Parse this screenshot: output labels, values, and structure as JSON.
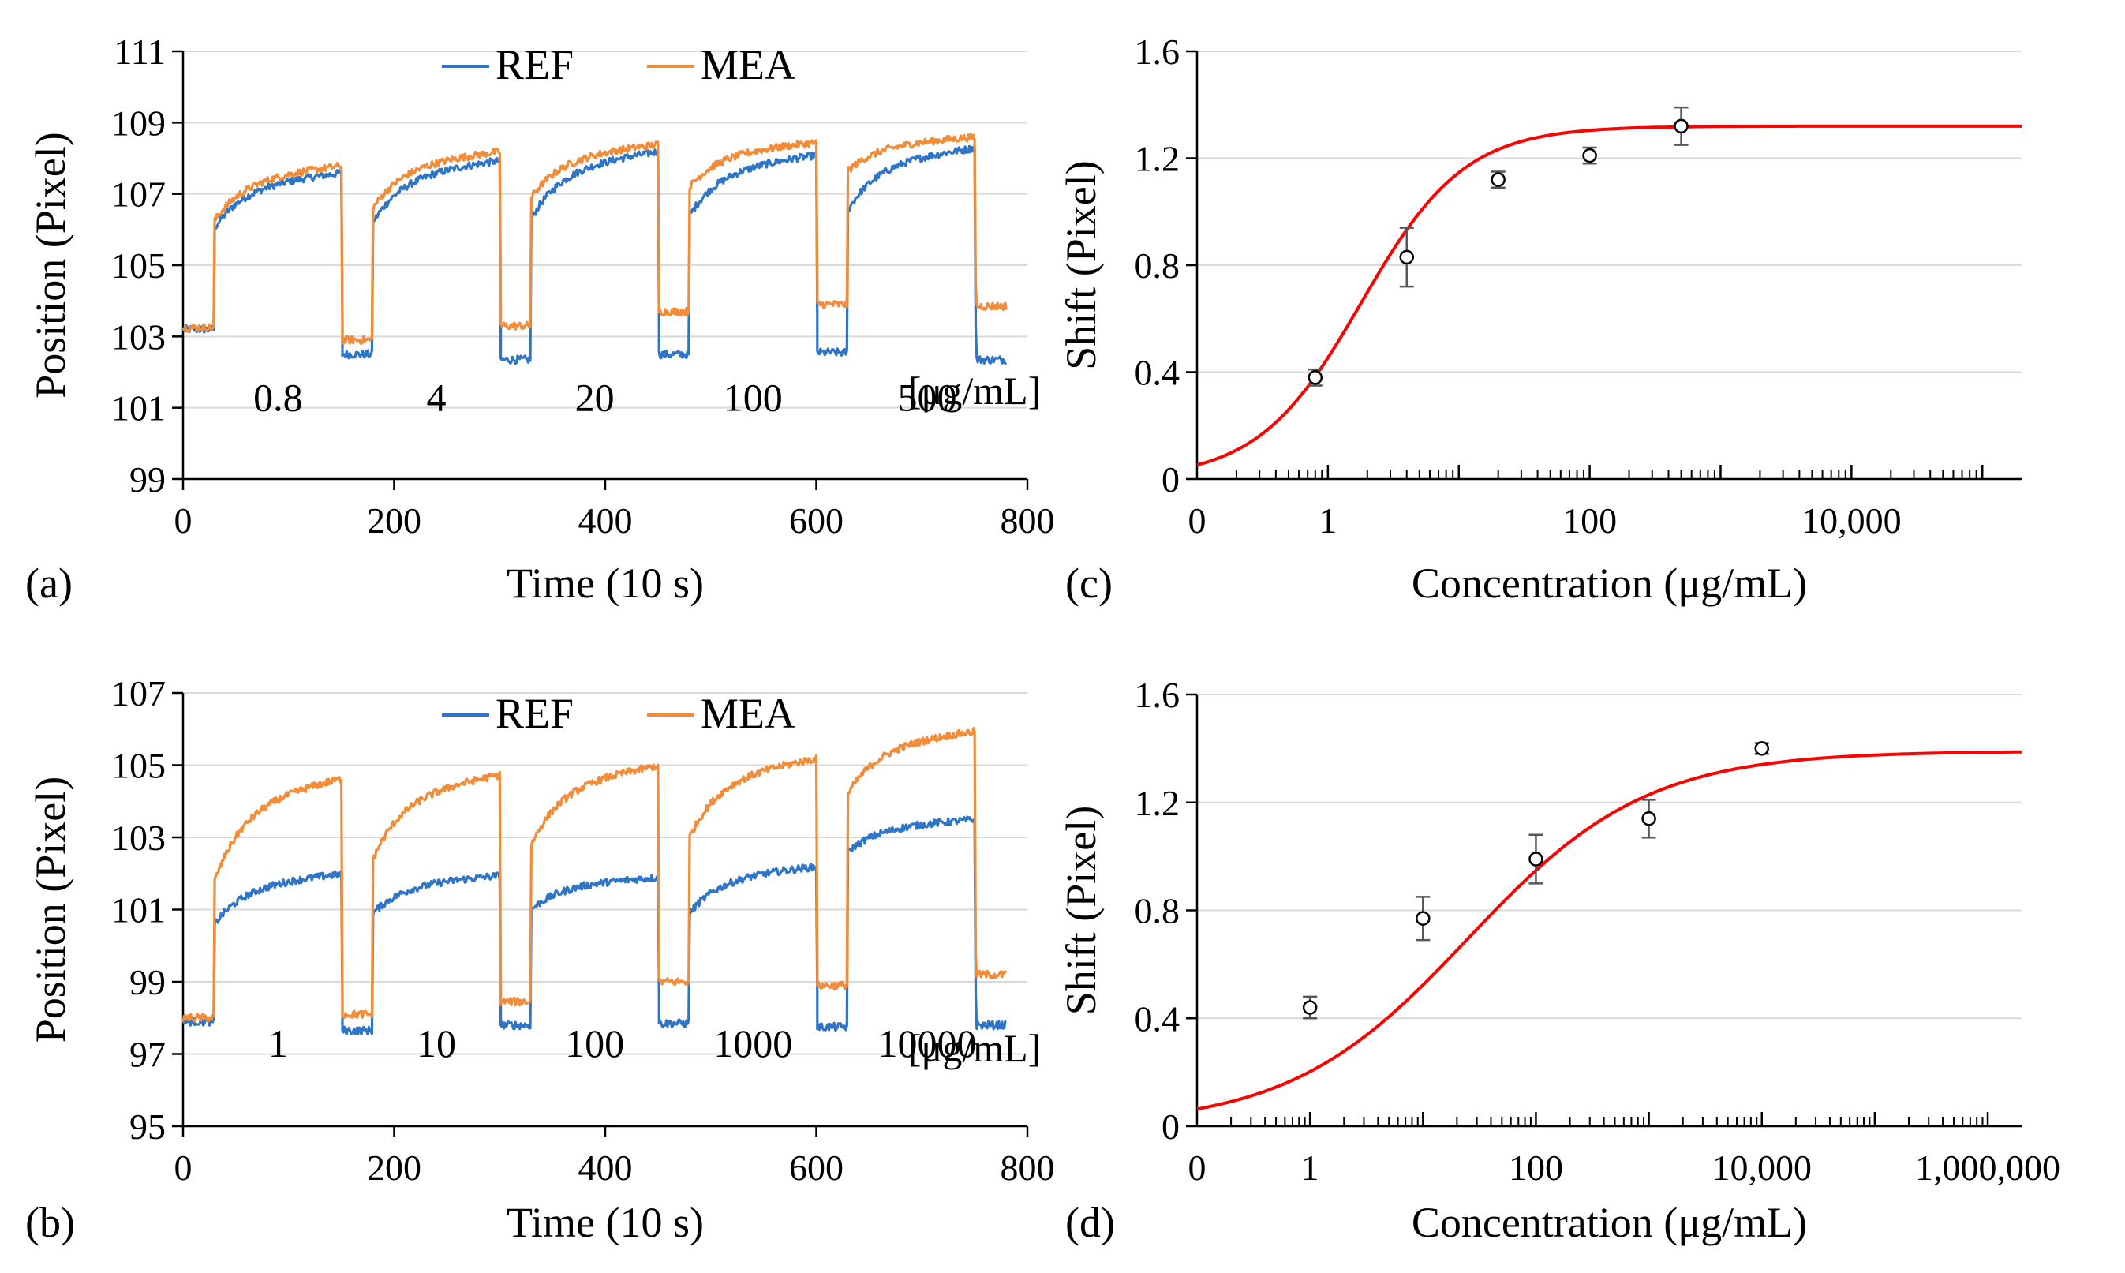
{
  "figure": {
    "colors": {
      "REF": "#2e75c8",
      "MEA": "#f28c38",
      "fit": "#ff0000",
      "axis": "#000000",
      "marker": "#000000"
    }
  },
  "chart_data": [
    {
      "panel": "a",
      "panel_label": "(a)",
      "type": "line",
      "title": "",
      "xlabel": "Time (10 s)",
      "ylabel": "Position (Pixel)",
      "xlim": [
        0,
        800
      ],
      "ylim": [
        99,
        111
      ],
      "xticks": [
        0,
        200,
        400,
        600,
        800
      ],
      "yticks": [
        99,
        101,
        103,
        105,
        107,
        109,
        111
      ],
      "legend": {
        "position": "top-center",
        "entries": [
          "REF",
          "MEA"
        ]
      },
      "steps": [
        {
          "label": "0.8",
          "start": 30,
          "end": 150
        },
        {
          "label": "4",
          "start": 180,
          "end": 300
        },
        {
          "label": "20",
          "start": 330,
          "end": 450
        },
        {
          "label": "100",
          "start": 480,
          "end": 600
        },
        {
          "label": "500",
          "start": 630,
          "end": 750
        }
      ],
      "unit_label": "[μg/mL]",
      "x_end": 780,
      "series": [
        {
          "name": "REF",
          "baseline_start": 103.2,
          "baselines": [
            102.5,
            102.35,
            102.5,
            102.55,
            102.35
          ],
          "plateau_start": [
            106.05,
            106.2,
            106.3,
            106.4,
            106.55
          ],
          "plateau_end": [
            107.6,
            107.95,
            108.2,
            108.1,
            108.3
          ]
        },
        {
          "name": "MEA",
          "baseline_start": 103.25,
          "baselines": [
            102.9,
            103.3,
            103.7,
            103.9,
            103.85
          ],
          "plateau_start": [
            106.25,
            106.6,
            106.9,
            107.2,
            107.65
          ],
          "plateau_end": [
            107.8,
            108.2,
            108.4,
            108.45,
            108.6
          ]
        }
      ]
    },
    {
      "panel": "b",
      "panel_label": "(b)",
      "type": "line",
      "title": "",
      "xlabel": "Time (10 s)",
      "ylabel": "Position (Pixel)",
      "xlim": [
        0,
        800
      ],
      "ylim": [
        95,
        107
      ],
      "xticks": [
        0,
        200,
        400,
        600,
        800
      ],
      "yticks": [
        95,
        97,
        99,
        101,
        103,
        105,
        107
      ],
      "legend": {
        "position": "top-center",
        "entries": [
          "REF",
          "MEA"
        ]
      },
      "steps": [
        {
          "label": "1",
          "start": 30,
          "end": 150
        },
        {
          "label": "10",
          "start": 180,
          "end": 300
        },
        {
          "label": "100",
          "start": 330,
          "end": 450
        },
        {
          "label": "1000",
          "start": 480,
          "end": 600
        },
        {
          "label": "10000",
          "start": 630,
          "end": 750
        }
      ],
      "unit_label": "[μg/mL]",
      "x_end": 780,
      "series": [
        {
          "name": "REF",
          "baseline_start": 97.9,
          "baselines": [
            97.65,
            97.8,
            97.85,
            97.75,
            97.8
          ],
          "plateau_start": [
            100.6,
            100.9,
            101.0,
            100.9,
            102.6
          ],
          "plateau_end": [
            102.0,
            101.95,
            101.9,
            102.2,
            103.5
          ]
        },
        {
          "name": "MEA",
          "baseline_start": 98.0,
          "baselines": [
            98.1,
            98.45,
            99.0,
            98.9,
            99.2
          ],
          "plateau_start": [
            101.8,
            102.4,
            102.8,
            103.0,
            104.2
          ],
          "plateau_end": [
            104.65,
            104.75,
            105.0,
            105.2,
            105.95
          ]
        }
      ]
    },
    {
      "panel": "c",
      "panel_label": "(c)",
      "type": "scatter",
      "title": "",
      "xlabel": "Concentration (μg/mL)",
      "ylabel": "Shift (Pixel)",
      "xscale": "log",
      "xlim_log10": [
        -1,
        5.3
      ],
      "ylim": [
        0,
        1.6
      ],
      "yticks": [
        0,
        0.4,
        0.8,
        1.2,
        1.6
      ],
      "ytick_labels": [
        "0",
        "0.4",
        "0.8",
        "1.2",
        "1.6"
      ],
      "xtick_positions_log10": [
        -1,
        0,
        2,
        4
      ],
      "xtick_labels": [
        "0",
        "1",
        "100",
        "10,000"
      ],
      "points": [
        {
          "x": 0.8,
          "y": 0.38,
          "err": 0.03
        },
        {
          "x": 4,
          "y": 0.83,
          "err": 0.11
        },
        {
          "x": 20,
          "y": 1.12,
          "err": 0.03
        },
        {
          "x": 100,
          "y": 1.21,
          "err": 0.03
        },
        {
          "x": 500,
          "y": 1.32,
          "err": 0.07
        }
      ],
      "fit": {
        "model": "sigmoid",
        "ymax": 1.32,
        "k": 1.8,
        "n": 1.1
      }
    },
    {
      "panel": "d",
      "panel_label": "(d)",
      "type": "scatter",
      "title": "",
      "xlabel": "Concentration (μg/mL)",
      "ylabel": "Shift (Pixel)",
      "xscale": "log",
      "xlim_log10": [
        -1,
        6.3
      ],
      "ylim": [
        0,
        1.6
      ],
      "yticks": [
        0,
        0.4,
        0.8,
        1.2,
        1.6
      ],
      "ytick_labels": [
        "0",
        "0.4",
        "0.8",
        "1.2",
        "1.6"
      ],
      "xtick_positions_log10": [
        -1,
        0,
        2,
        4,
        6
      ],
      "xtick_labels": [
        "0",
        "1",
        "100",
        "10,000",
        "1,000,000"
      ],
      "points": [
        {
          "x": 1,
          "y": 0.44,
          "err": 0.04
        },
        {
          "x": 10,
          "y": 0.77,
          "err": 0.08
        },
        {
          "x": 100,
          "y": 0.99,
          "err": 0.09
        },
        {
          "x": 1000,
          "y": 1.14,
          "err": 0.07
        },
        {
          "x": 10000,
          "y": 1.4,
          "err": 0.02
        }
      ],
      "fit": {
        "model": "sigmoid",
        "ymax": 1.39,
        "k": 25,
        "n": 0.55
      }
    }
  ]
}
